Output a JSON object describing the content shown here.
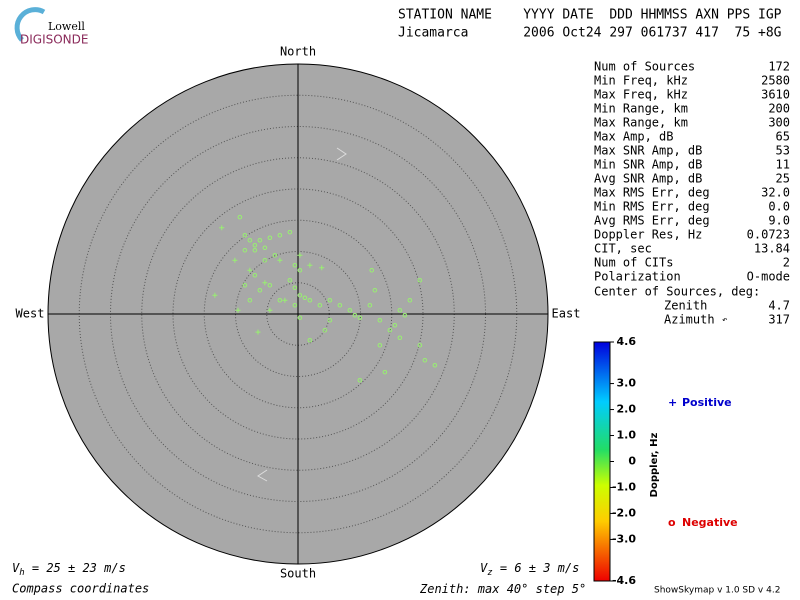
{
  "logo": {
    "top": "Lowell",
    "bottom": "DIGISONDE"
  },
  "header": {
    "line1": "STATION NAME    YYYY DATE  DDD HHMMSS AXN PPS IGP",
    "line2": "Jicamarca       2006 Oct24 297 061737 417  75 +8G"
  },
  "compass": {
    "north": "North",
    "south": "South",
    "west": "West",
    "east": "East"
  },
  "stats": [
    [
      "Num of Sources",
      "172"
    ],
    [
      "Min Freq, kHz",
      "2580"
    ],
    [
      "Max Freq, kHz",
      "3610"
    ],
    [
      "Min Range, km",
      "200"
    ],
    [
      "Max Range, km",
      "300"
    ],
    [
      "Max Amp, dB",
      "65"
    ],
    [
      "Max SNR Amp, dB",
      "53"
    ],
    [
      "Min SNR Amp, dB",
      "11"
    ],
    [
      "Avg SNR Amp, dB",
      "25"
    ],
    [
      "Max RMS Err, deg",
      "32.0"
    ],
    [
      "Min RMS Err, deg",
      "0.0"
    ],
    [
      "Avg RMS Err, deg",
      "9.0"
    ],
    [
      "Doppler Res, Hz",
      "0.0723"
    ],
    [
      "CIT, sec",
      "13.84"
    ],
    [
      "Num of CITs",
      "2"
    ],
    [
      "Polarization",
      "O-mode"
    ]
  ],
  "center": {
    "title": "Center of Sources, deg:",
    "zenith_label": "Zenith",
    "zenith": "4.7",
    "azimuth_label": "Azimuth",
    "azimuth_symbol": "↶",
    "azimuth": "317"
  },
  "colorbar": {
    "title": "Doppler, Hz",
    "lim": [
      -4.6,
      4.6
    ],
    "ticks": [
      4.6,
      {
        "value": 3,
        "label": "3.0"
      },
      {
        "value": 2,
        "label": "2.0"
      },
      {
        "value": 1,
        "label": "1.0"
      },
      0,
      {
        "value": -1,
        "label": "-1.0"
      },
      {
        "value": -2,
        "label": "-2.0"
      },
      {
        "value": -3,
        "label": "-3.0"
      },
      -4.6
    ]
  },
  "legend": {
    "positive_symbol": "+",
    "positive": "Positive",
    "negative_symbol": "o",
    "negative": "Negative"
  },
  "footer": {
    "vh_symbol": "V",
    "vh_sub": "h",
    "vh_text": " = 25 ± 23 m/s",
    "vz_symbol": "V",
    "vz_sub": "z",
    "vz_text": " = 6 ± 3 m/s",
    "coords": "Compass coordinates",
    "zenith_prefix": "Zenith: max ",
    "zenith_max": 40,
    "zenith_mid": "°  step ",
    "zenith_step": 5,
    "zenith_suffix": "°",
    "version": "ShowSkymap v 1.0  SD v 4.2"
  },
  "skymap": {
    "negative": [
      {
        "x": -9.3,
        "y": 15.5
      },
      {
        "x": -8.5,
        "y": 12.6
      },
      {
        "x": -7.7,
        "y": 11.8
      },
      {
        "x": -6.9,
        "y": 11.0
      },
      {
        "x": -6.1,
        "y": 11.8
      },
      {
        "x": -4.5,
        "y": 12.2
      },
      {
        "x": -2.9,
        "y": 12.6
      },
      {
        "x": -1.3,
        "y": 13.1
      },
      {
        "x": -8.5,
        "y": 10.2
      },
      {
        "x": -6.9,
        "y": 10.2
      },
      {
        "x": -5.3,
        "y": 10.6
      },
      {
        "x": -3.7,
        "y": 9.4
      },
      {
        "x": -0.5,
        "y": 7.8
      },
      {
        "x": 0.3,
        "y": 7.0
      },
      {
        "x": -1.3,
        "y": 5.4
      },
      {
        "x": -0.5,
        "y": 4.2
      },
      {
        "x": 0.3,
        "y": 3.0
      },
      {
        "x": 1.1,
        "y": 2.6
      },
      {
        "x": 1.9,
        "y": 2.2
      },
      {
        "x": 3.5,
        "y": 1.4
      },
      {
        "x": 5.1,
        "y": 2.2
      },
      {
        "x": 6.7,
        "y": 1.4
      },
      {
        "x": 8.3,
        "y": 0.6
      },
      {
        "x": 9.1,
        "y": -0.2
      },
      {
        "x": 9.9,
        "y": -0.6
      },
      {
        "x": 11.5,
        "y": 1.4
      },
      {
        "x": 12.3,
        "y": 3.8
      },
      {
        "x": 11.8,
        "y": 7.0
      },
      {
        "x": 13.1,
        "y": -1.0
      },
      {
        "x": 14.7,
        "y": -2.6
      },
      {
        "x": 15.5,
        "y": -1.8
      },
      {
        "x": 16.3,
        "y": 0.6
      },
      {
        "x": 17.1,
        "y": -0.2
      },
      {
        "x": 17.9,
        "y": 2.2
      },
      {
        "x": 19.5,
        "y": 5.4
      },
      {
        "x": 13.1,
        "y": -5.0
      },
      {
        "x": 16.3,
        "y": -3.8
      },
      {
        "x": 9.9,
        "y": -10.6
      },
      {
        "x": 13.9,
        "y": -9.3
      },
      {
        "x": 19.5,
        "y": -5.0
      },
      {
        "x": 20.3,
        "y": -7.4
      },
      {
        "x": 21.9,
        "y": -8.2
      },
      {
        "x": 4.3,
        "y": -2.6
      },
      {
        "x": 1.9,
        "y": -4.2
      },
      {
        "x": 5.1,
        "y": -1.0
      },
      {
        "x": -6.1,
        "y": 3.8
      },
      {
        "x": -4.5,
        "y": 4.6
      },
      {
        "x": -7.7,
        "y": 2.2
      },
      {
        "x": -2.9,
        "y": 2.2
      },
      {
        "x": -0.5,
        "y": 1.4
      },
      {
        "x": 0.3,
        "y": -0.6
      },
      {
        "x": -8.5,
        "y": 4.6
      },
      {
        "x": -6.9,
        "y": 6.2
      },
      {
        "x": -5.3,
        "y": 8.6
      }
    ],
    "positive": [
      {
        "x": -12.2,
        "y": 13.8
      },
      {
        "x": -10.1,
        "y": 8.6
      },
      {
        "x": -13.3,
        "y": 3.0
      },
      {
        "x": -9.6,
        "y": 0.6
      },
      {
        "x": -6.4,
        "y": -2.9
      },
      {
        "x": -2.9,
        "y": 8.6
      },
      {
        "x": 0.3,
        "y": 9.4
      },
      {
        "x": 1.9,
        "y": 7.8
      },
      {
        "x": 3.8,
        "y": 7.4
      },
      {
        "x": -7.7,
        "y": 7.0
      },
      {
        "x": -2.1,
        "y": 2.2
      },
      {
        "x": -4.5,
        "y": 0.6
      },
      {
        "x": -5.3,
        "y": 5.0
      }
    ]
  }
}
